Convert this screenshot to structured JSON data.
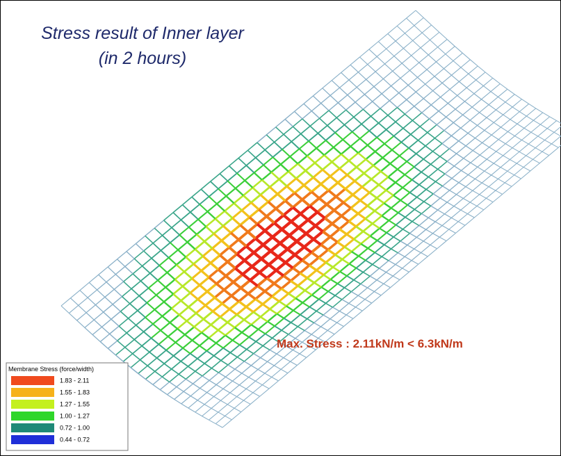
{
  "title": [
    "Stress result of Inner layer",
    "(in 2 hours)"
  ],
  "annotation": "Max. Stress : 2.11kN/m < 6.3kN/m",
  "legend": {
    "title": "Membrane Stress (force/width)",
    "entries": [
      {
        "label": "1.83 - 2.11",
        "color": "#f04a1e"
      },
      {
        "label": "1.55 - 1.83",
        "color": "#f6b21a"
      },
      {
        "label": "1.27 - 1.55",
        "color": "#c4f01e"
      },
      {
        "label": "1.00 - 1.27",
        "color": "#2fd62a"
      },
      {
        "label": "0.72 - 1.00",
        "color": "#1f8a78"
      },
      {
        "label": "0.44 - 0.72",
        "color": "#1f2fd8"
      }
    ]
  }
}
